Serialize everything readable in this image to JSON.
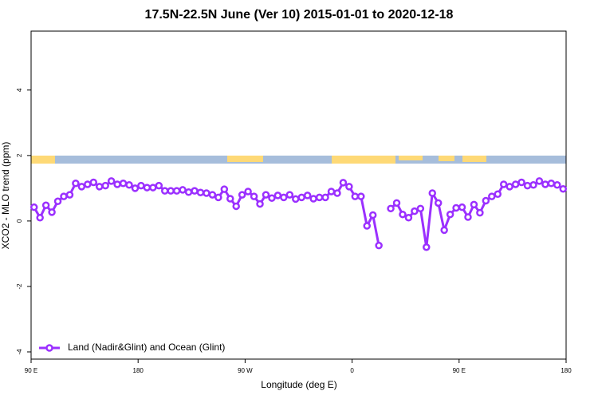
{
  "chart_data": {
    "type": "line",
    "title": "17.5N-22.5N June (Ver 10)   2015-01-01 to 2020-12-18",
    "x_label": "Longitude (deg E)",
    "y_label": "XCO2 - MLO trend (ppm)",
    "x": [
      92.5,
      97.5,
      102.5,
      107.5,
      112.5,
      117.5,
      122.5,
      127.5,
      132.5,
      137.5,
      142.5,
      147.5,
      152.5,
      157.5,
      162.5,
      167.5,
      172.5,
      177.5,
      182.5,
      187.5,
      192.5,
      197.5,
      202.5,
      207.5,
      212.5,
      217.5,
      222.5,
      227.5,
      232.5,
      237.5,
      242.5,
      247.5,
      252.5,
      257.5,
      262.5,
      267.5,
      272.5,
      277.5,
      282.5,
      287.5,
      292.5,
      297.5,
      302.5,
      307.5,
      312.5,
      317.5,
      322.5,
      327.5,
      332.5,
      337.5,
      342.5,
      347.5,
      352.5,
      357.5,
      362.5,
      367.5,
      372.5,
      377.5,
      382.5,
      387.5,
      392.5,
      397.5,
      402.5,
      407.5,
      412.5,
      417.5,
      422.5,
      427.5,
      432.5,
      437.5,
      442.5,
      447.5,
      452.5,
      457.5,
      462.5,
      467.5,
      472.5,
      477.5,
      482.5,
      487.5,
      492.5,
      497.5,
      502.5,
      507.5,
      512.5,
      517.5,
      522.5,
      527.5,
      532.5,
      537.5
    ],
    "series": [
      {
        "name": "Land (Nadir&Glint) and Ocean (Glint)",
        "color": "#9b30ff",
        "values": [
          0.42,
          0.1,
          0.48,
          0.27,
          0.6,
          0.75,
          0.8,
          1.15,
          1.05,
          1.12,
          1.18,
          1.05,
          1.08,
          1.22,
          1.12,
          1.15,
          1.1,
          1.0,
          1.08,
          1.02,
          1.02,
          1.08,
          0.92,
          0.92,
          0.92,
          0.95,
          0.88,
          0.92,
          0.87,
          0.85,
          0.8,
          0.72,
          0.97,
          0.68,
          0.45,
          0.8,
          0.9,
          0.75,
          0.52,
          0.8,
          0.7,
          0.78,
          0.72,
          0.8,
          0.67,
          0.72,
          0.78,
          0.68,
          0.72,
          0.72,
          0.9,
          0.85,
          1.17,
          1.05,
          0.75,
          0.75,
          -0.15,
          0.18,
          -0.75,
          null,
          0.38,
          0.55,
          0.2,
          0.1,
          0.3,
          0.38,
          -0.8,
          0.85,
          0.55,
          -0.28,
          0.2,
          0.4,
          0.42,
          0.12,
          0.5,
          0.25,
          0.62,
          0.75,
          0.82,
          1.12,
          1.05,
          1.12,
          1.18,
          1.08,
          1.1,
          1.22,
          1.12,
          1.15,
          1.1,
          0.98
        ]
      }
    ],
    "xlim": [
      90,
      540
    ],
    "xticks": [
      {
        "value": 90,
        "label": "90 E"
      },
      180,
      {
        "value": 270,
        "label": "90 W"
      },
      {
        "value": 360,
        "label": "0"
      },
      {
        "value": 450,
        "label": "90 E"
      },
      {
        "value": 540,
        "label": "180"
      }
    ],
    "ylim": [
      -4.22,
      5.8
    ],
    "yticks": [
      -4,
      -2,
      0,
      2,
      4
    ],
    "legend": "bottom-left"
  }
}
